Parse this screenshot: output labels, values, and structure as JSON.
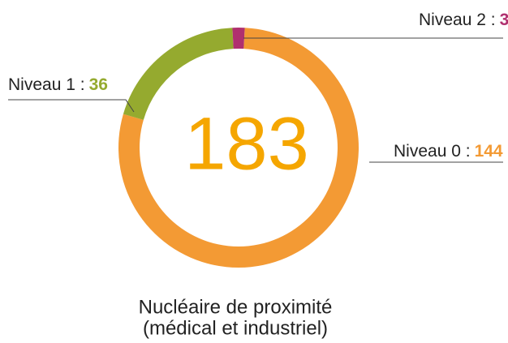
{
  "chart_data": {
    "type": "donut",
    "title": [
      "Nucléaire de proximité",
      "(médical et industriel)"
    ],
    "total": 183,
    "categories": [
      "Niveau 0 :",
      "Niveau 1 :",
      "Niveau 2 :"
    ],
    "values": [
      144,
      36,
      3
    ],
    "colors": [
      "#f39a34",
      "#95aa2f",
      "#b0306f"
    ],
    "total_color": "#f5a600"
  }
}
